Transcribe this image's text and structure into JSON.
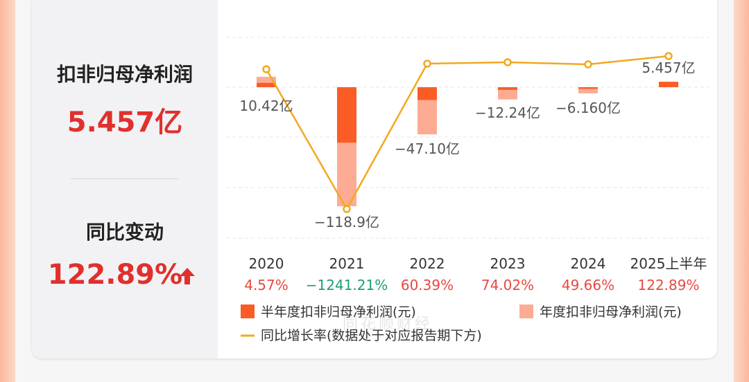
{
  "summary": {
    "metric_label": "扣非归母净利润",
    "metric_value": "5.457亿",
    "change_label": "同比变动",
    "change_value": "122.89%"
  },
  "colors": {
    "half_year_bar": "#fb5c25",
    "annual_bar": "#fdac93",
    "growth_line": "#f3a81d",
    "positive": "#e8483f",
    "negative": "#1e9e6c",
    "label_text": "#555555"
  },
  "chart_data": {
    "type": "bar",
    "categories": [
      "2020",
      "2021",
      "2022",
      "2023",
      "2024",
      "2025上半年"
    ],
    "series": [
      {
        "name": "半年度扣非归母净利润(元)",
        "values": [
          4.3,
          -55.4,
          -12.8,
          -2.7,
          -1.6,
          5.457
        ]
      },
      {
        "name": "年度扣非归母净利润(元)",
        "values": [
          10.42,
          -118.9,
          -47.1,
          -12.24,
          -6.16,
          null
        ]
      },
      {
        "name": "同比增长率(数据处于对应报告期下方)",
        "values": [
          4.57,
          -1241.21,
          60.39,
          74.02,
          49.66,
          122.89
        ]
      }
    ],
    "value_labels": [
      "10.42亿",
      "−118.9亿",
      "−47.10亿",
      "−12.24亿",
      "−6.160亿",
      "5.457亿"
    ],
    "growth_labels": [
      "4.57%",
      "−1241.21%",
      "60.39%",
      "74.02%",
      "49.66%",
      "122.89%"
    ],
    "unit": "亿",
    "grid": true,
    "legend_position": "bottom"
  },
  "watermark": "同花顺财经"
}
